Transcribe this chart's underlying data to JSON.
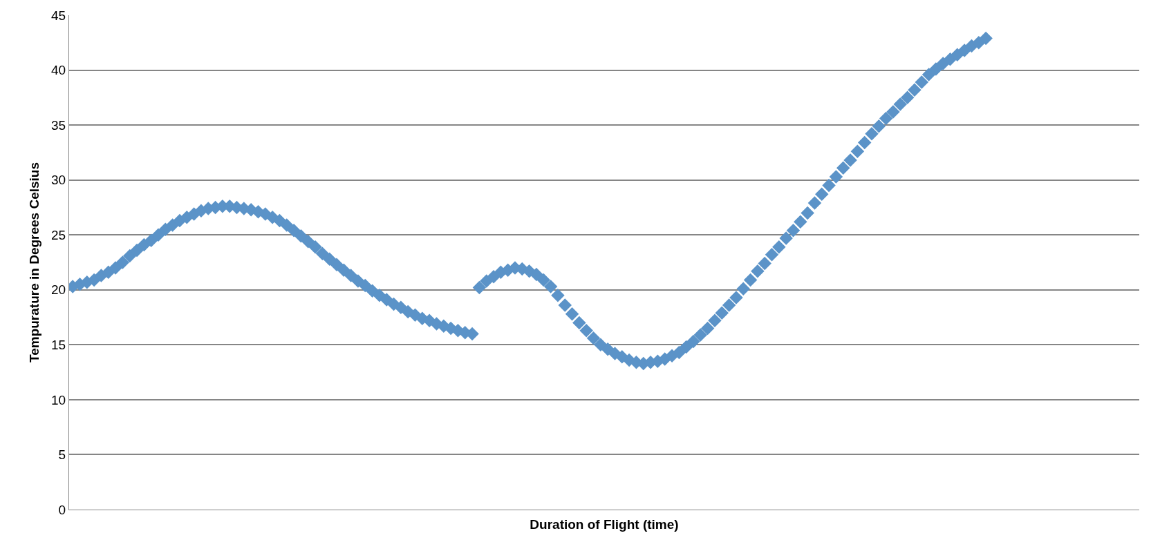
{
  "chart_data": {
    "type": "scatter",
    "xlabel": "Duration of Flight (time)",
    "ylabel": "Tempurature in Degrees Celsius",
    "categories": [
      null,
      null,
      null,
      null,
      null,
      null,
      null,
      null,
      null,
      null,
      null,
      null,
      null,
      null,
      null,
      null,
      null,
      null,
      null,
      null,
      null,
      null,
      null,
      null,
      null,
      null,
      null,
      null,
      null,
      null,
      null,
      null,
      null,
      null,
      null,
      null,
      null,
      null,
      null,
      null,
      null,
      null,
      null,
      null,
      null,
      null,
      null,
      null,
      null,
      null,
      null,
      null,
      null,
      null,
      null,
      null,
      null,
      null,
      null,
      null,
      null,
      null,
      null,
      null,
      null,
      null,
      null,
      null,
      null,
      null,
      null,
      null,
      null,
      null,
      null,
      null,
      null,
      null,
      null,
      null,
      null,
      null,
      null,
      null,
      null,
      null,
      null,
      null,
      null,
      null,
      null,
      null,
      null,
      null,
      null,
      null,
      null,
      null,
      null,
      null,
      null,
      null,
      null,
      null,
      null,
      null,
      null,
      null,
      null,
      null,
      null,
      null,
      null,
      null,
      null,
      null,
      null,
      null,
      null,
      null,
      null,
      null,
      null,
      null,
      null,
      null,
      null,
      null,
      null,
      null,
      null,
      null,
      null,
      null,
      null,
      null,
      null,
      null,
      null,
      null,
      null,
      null,
      null,
      null,
      null,
      null,
      null,
      null,
      null,
      null
    ],
    "series": [
      {
        "color": "#5b93c8",
        "values": [
          20.3,
          20.5,
          20.7,
          20.9,
          21.3,
          21.6,
          22.0,
          22.5,
          23.1,
          23.6,
          24.1,
          24.5,
          25.0,
          25.5,
          25.9,
          26.3,
          26.6,
          26.9,
          27.2,
          27.4,
          27.5,
          27.6,
          27.6,
          27.5,
          27.4,
          27.3,
          27.1,
          26.9,
          26.6,
          26.3,
          25.9,
          25.4,
          24.9,
          24.4,
          23.9,
          23.3,
          22.8,
          22.3,
          21.8,
          21.3,
          20.8,
          20.4,
          19.9,
          19.5,
          19.1,
          18.7,
          18.4,
          18.0,
          17.7,
          17.4,
          17.2,
          16.9,
          16.7,
          16.5,
          16.3,
          16.1,
          16.0,
          20.2,
          20.8,
          21.2,
          21.6,
          21.8,
          22.0,
          21.9,
          21.7,
          21.4,
          20.9,
          20.3,
          19.5,
          18.6,
          17.8,
          17.0,
          16.3,
          15.6,
          15.0,
          14.6,
          14.2,
          13.9,
          13.6,
          13.4,
          13.3,
          13.4,
          13.5,
          13.7,
          14.0,
          14.3,
          14.8,
          15.3,
          15.9,
          16.5,
          17.2,
          17.9,
          18.6,
          19.3,
          20.1,
          20.9,
          21.7,
          22.4,
          23.2,
          23.9,
          24.7,
          25.4,
          26.2,
          27.0,
          27.9,
          28.7,
          29.5,
          30.3,
          31.1,
          31.8,
          32.6,
          33.4,
          34.2,
          34.9,
          35.6,
          36.2,
          36.9,
          37.5,
          38.2,
          38.9,
          39.6,
          40.1,
          40.6,
          41.0,
          41.4,
          41.8,
          42.2,
          42.5,
          42.9,
          null,
          null,
          null,
          null,
          null,
          null,
          null,
          null,
          null,
          null,
          null,
          null,
          null,
          null,
          null,
          null,
          null,
          null,
          null,
          null,
          null
        ]
      }
    ],
    "ylim": [
      0,
      45
    ],
    "yticks": [
      0,
      5,
      10,
      15,
      20,
      25,
      30,
      35,
      40,
      45
    ],
    "grid": "y",
    "marker": "diamond"
  }
}
